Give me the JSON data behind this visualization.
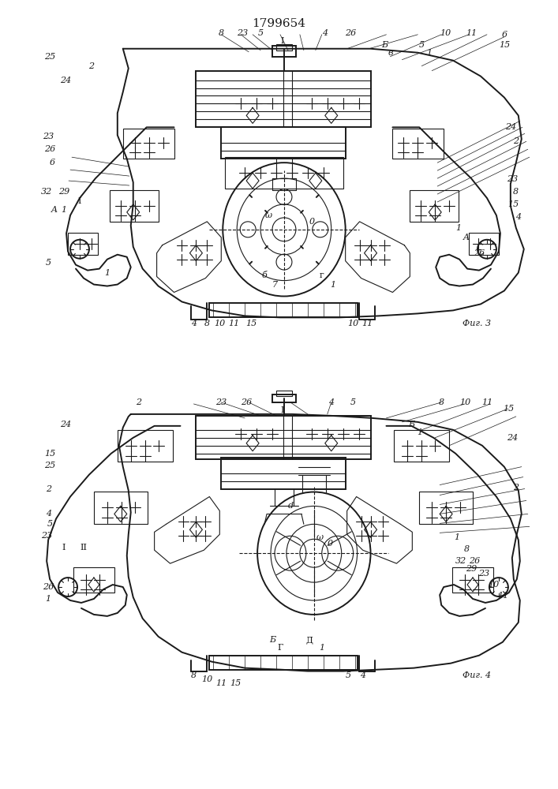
{
  "title": "1799654",
  "fig3_label": "Фиг. 3",
  "fig4_label": "Фиг. 4",
  "background_color": "#ffffff",
  "line_color": "#1a1a1a",
  "title_fontsize": 11,
  "label_fontsize": 8.0
}
